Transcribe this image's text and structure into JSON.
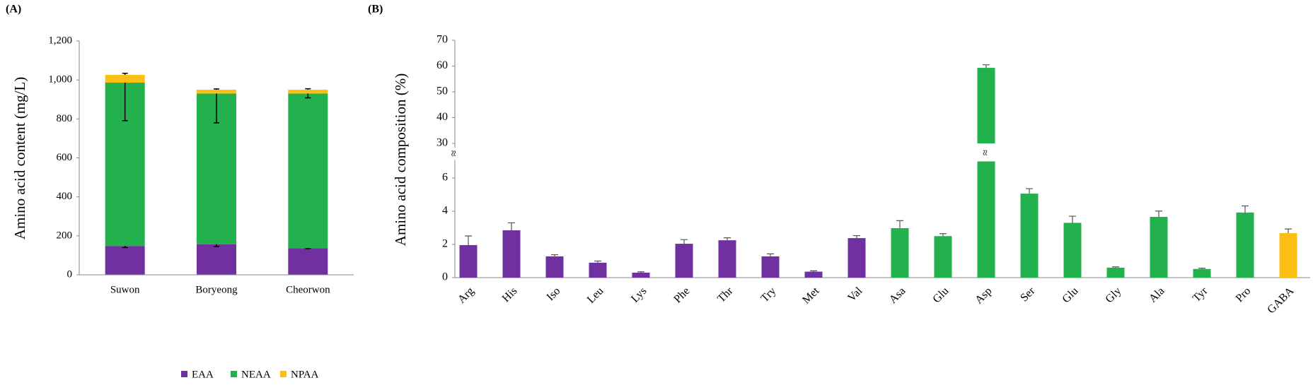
{
  "chart_data": [
    {
      "type": "bar",
      "stacked": true,
      "panel": "(A)",
      "ylabel": "Amino acid content (mg/L)",
      "categories": [
        "Suwon",
        "Boryeong",
        "Cheorwon"
      ],
      "series": [
        {
          "name": "EAA",
          "color": "#7030a0",
          "values": [
            148,
            157,
            137
          ],
          "errors": [
            8,
            12,
            3
          ]
        },
        {
          "name": "NEAA",
          "color": "#22b14c",
          "values": [
            838,
            773,
            793
          ],
          "errors": [
            195,
            150,
            22
          ]
        },
        {
          "name": "NPAA",
          "color": "#fcbf14",
          "values": [
            40,
            20,
            20
          ],
          "errors": [
            8,
            4,
            5
          ]
        }
      ],
      "ylim": [
        0,
        1200
      ],
      "yticks": [
        0,
        200,
        400,
        600,
        800,
        {
          "value": 1000,
          "label": "1,000"
        },
        {
          "value": 1200,
          "label": "1,200"
        }
      ],
      "legend": "bottom"
    },
    {
      "type": "bar",
      "panel": "(B)",
      "ylabel": "Amino acid composition (%)",
      "categories": [
        "Arg",
        "His",
        "Iso",
        "Leu",
        "Lys",
        "Phe",
        "Thr",
        "Try",
        "Met",
        "Val",
        "Asa",
        "Glu",
        "Asp",
        "Ser",
        "Glu",
        "Gly",
        "Ala",
        "Tyr",
        "Pro",
        "GABA"
      ],
      "values": [
        1.96,
        2.85,
        1.28,
        0.9,
        0.3,
        2.04,
        2.25,
        1.28,
        0.36,
        2.38,
        2.98,
        2.5,
        59.3,
        5.06,
        3.3,
        0.6,
        3.66,
        0.52,
        3.92,
        2.68
      ],
      "errors": [
        0.55,
        0.45,
        0.1,
        0.1,
        0.05,
        0.25,
        0.15,
        0.15,
        0.05,
        0.15,
        0.45,
        0.15,
        1.2,
        0.3,
        0.4,
        0.05,
        0.35,
        0.05,
        0.4,
        0.25
      ],
      "colors": [
        "#7030a0",
        "#7030a0",
        "#7030a0",
        "#7030a0",
        "#7030a0",
        "#7030a0",
        "#7030a0",
        "#7030a0",
        "#7030a0",
        "#7030a0",
        "#22b14c",
        "#22b14c",
        "#22b14c",
        "#22b14c",
        "#22b14c",
        "#22b14c",
        "#22b14c",
        "#22b14c",
        "#22b14c",
        "#fcbf14"
      ],
      "ylim": [
        0,
        7
      ],
      "yticks": [
        0,
        2,
        4,
        6
      ],
      "ylim_upper": [
        30,
        70
      ],
      "yticks_upper": [
        30,
        40,
        50,
        60,
        70
      ],
      "axis_break": "≈"
    }
  ]
}
